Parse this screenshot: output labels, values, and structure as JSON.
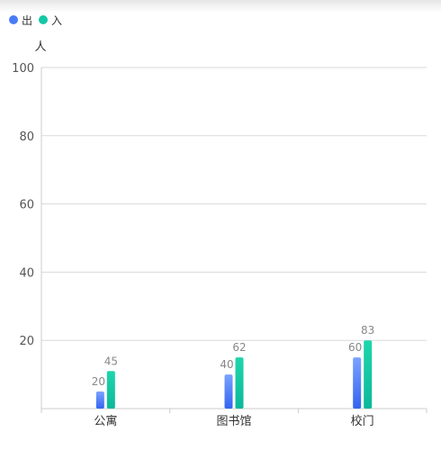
{
  "legend": [
    {
      "label": "出",
      "color": "#4a7bf7"
    },
    {
      "label": "入",
      "color": "#14c7a6"
    }
  ],
  "chart_data": {
    "type": "bar",
    "categories": [
      "公寓",
      "图书馆",
      "校门"
    ],
    "series": [
      {
        "name": "出",
        "values": [
          20,
          40,
          60
        ],
        "color": "#4a7bf7"
      },
      {
        "name": "入",
        "values": [
          45,
          62,
          83
        ],
        "color": "#14c7a6"
      }
    ],
    "bar_heights": {
      "出": [
        5,
        10,
        15
      ],
      "入": [
        11,
        15,
        20
      ]
    },
    "ylabel": "人",
    "ylim": [
      0,
      100
    ],
    "yticks": [
      20,
      40,
      60,
      80,
      100
    ],
    "grid": true,
    "legend_position": "top-left"
  }
}
